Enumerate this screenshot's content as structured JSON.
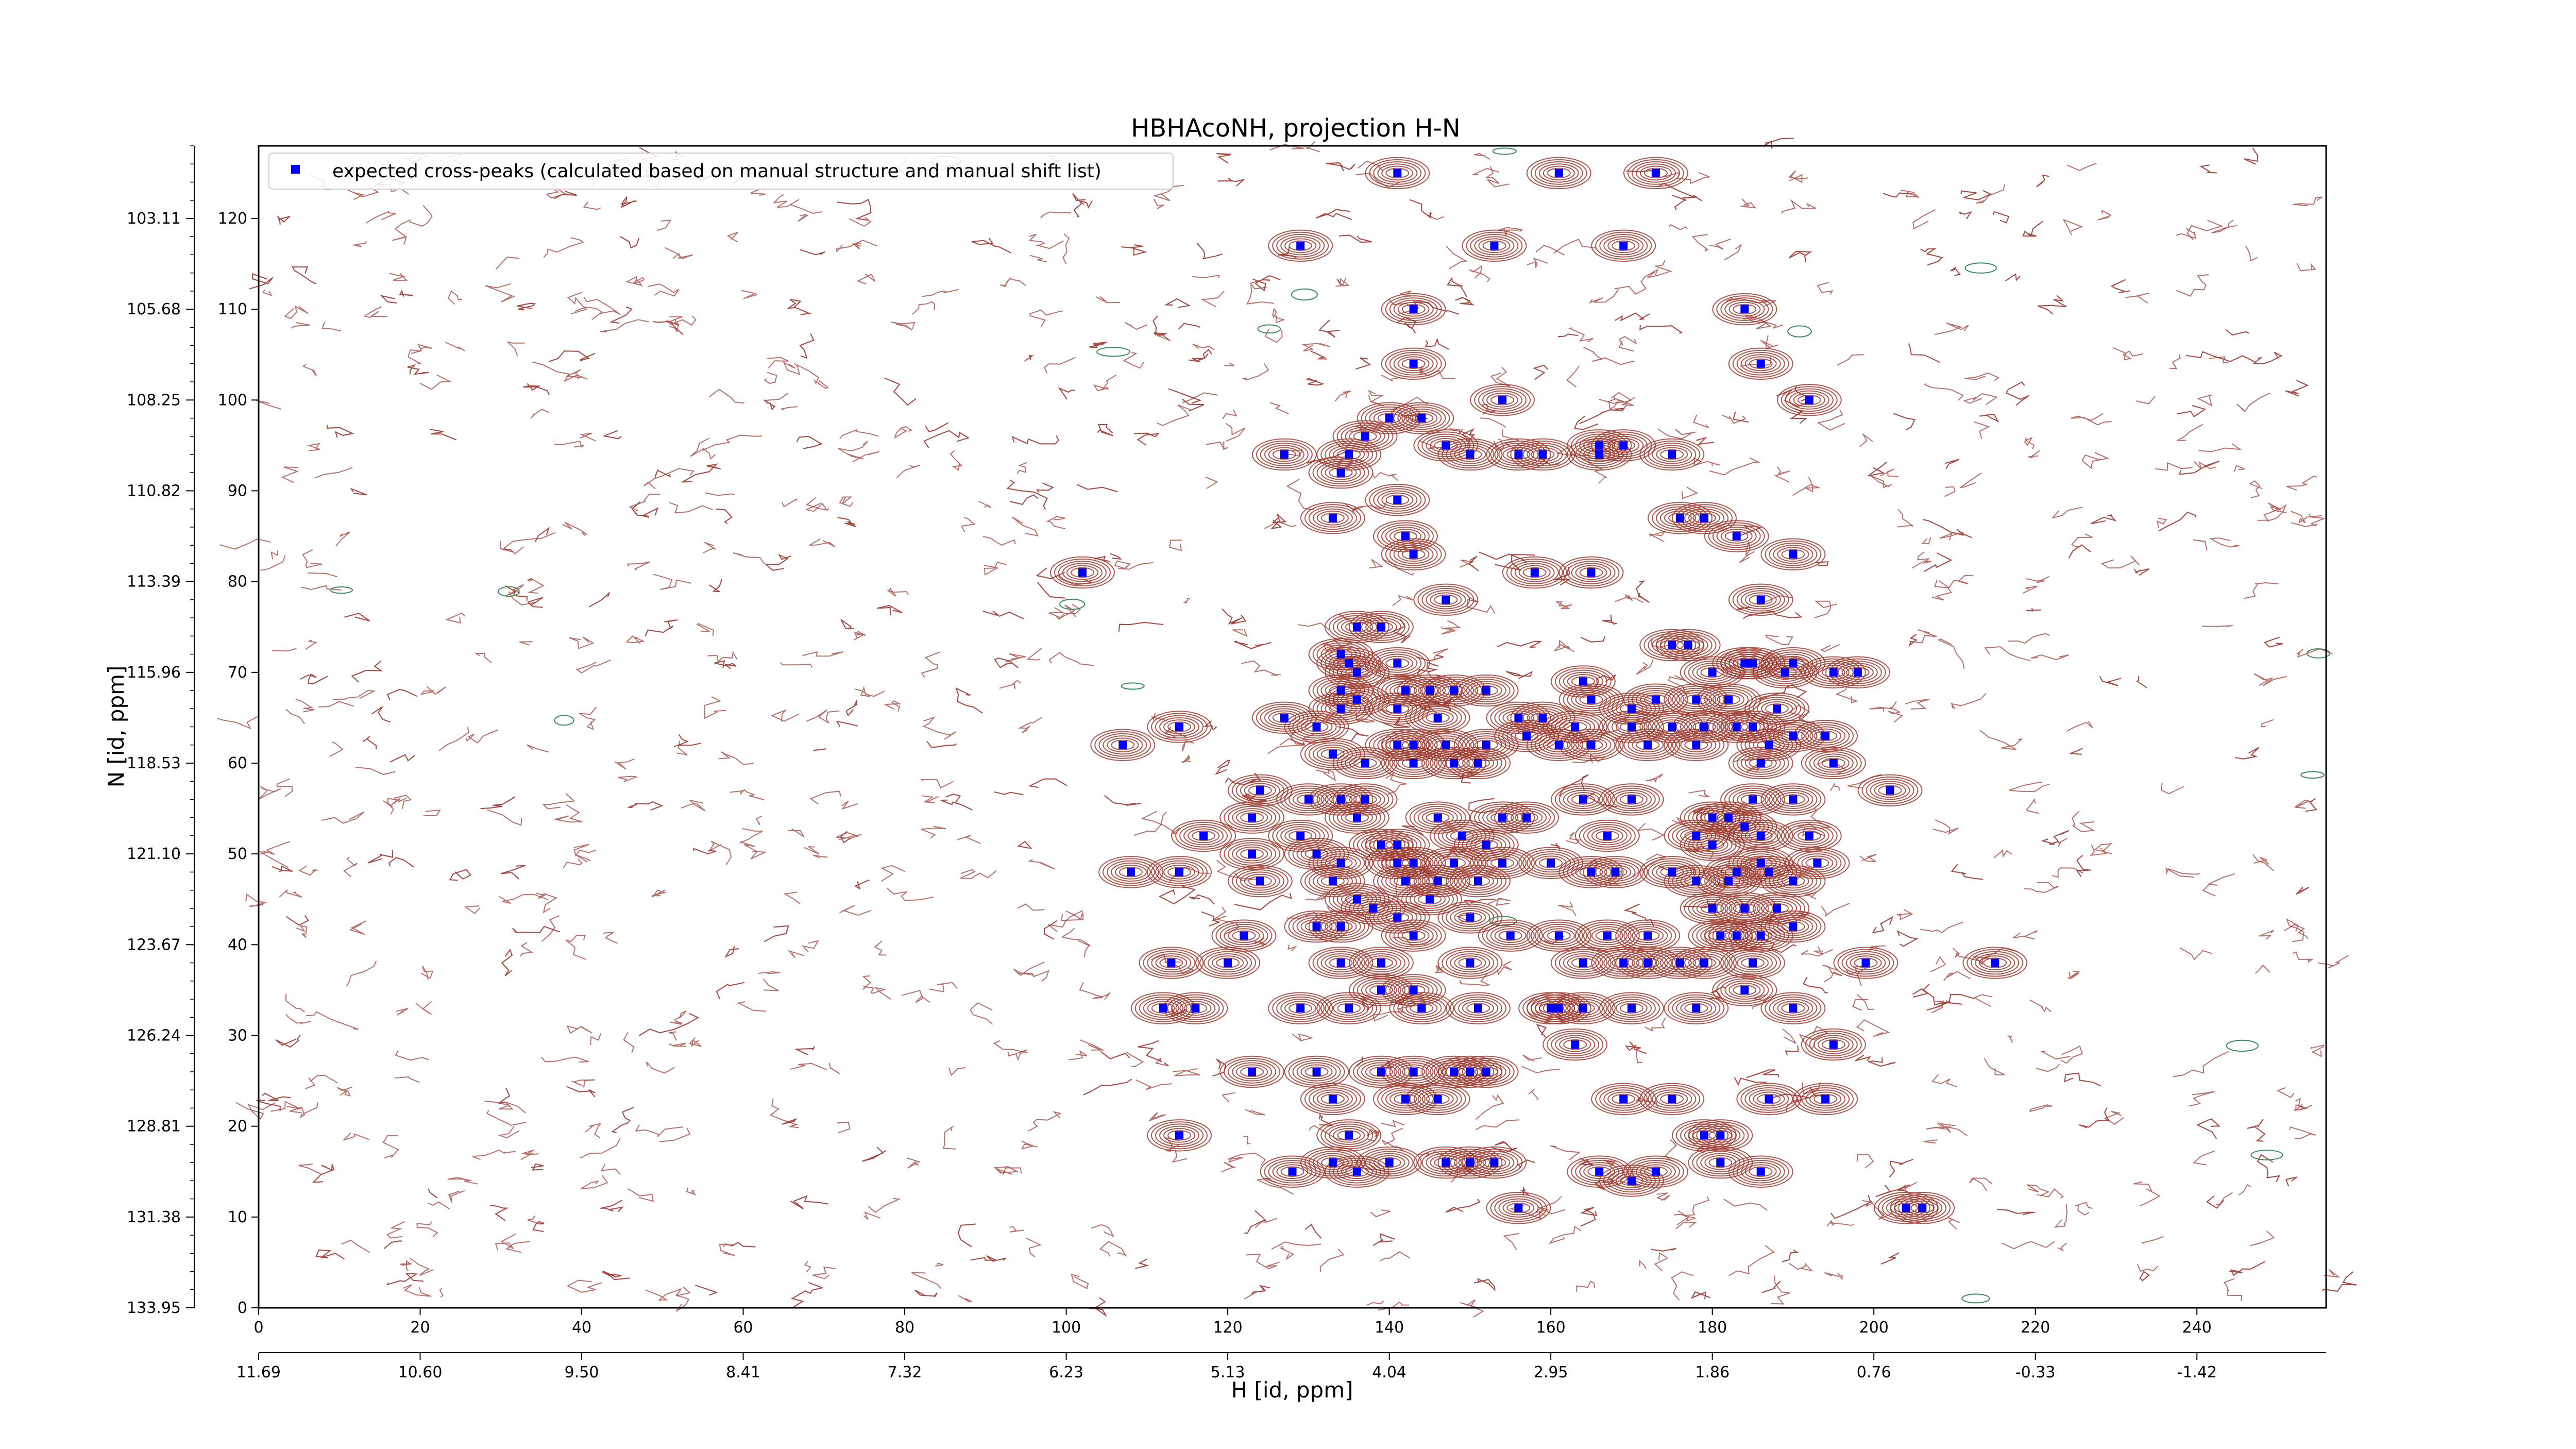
{
  "chart_data": {
    "type": "scatter",
    "title": "HBHAcoNH, projection H-N",
    "xlabel": "H [id, ppm]",
    "ylabel": "N [id, ppm]",
    "xlim": [
      0,
      256
    ],
    "ylim": [
      0,
      128
    ],
    "x_index_ticks": [
      "0",
      "20",
      "40",
      "60",
      "80",
      "100",
      "120",
      "140",
      "160",
      "180",
      "200",
      "220",
      "240"
    ],
    "x_ppm_ticks": [
      "11.69",
      "10.60",
      "9.50",
      "8.41",
      "7.32",
      "6.23",
      "5.13",
      "4.04",
      "2.95",
      "1.86",
      "0.76",
      "-0.33",
      "-1.42"
    ],
    "y_index_ticks": [
      "0",
      "10",
      "20",
      "30",
      "40",
      "50",
      "60",
      "70",
      "80",
      "90",
      "100",
      "110",
      "120"
    ],
    "y_ppm_ticks": [
      "133.95",
      "131.38",
      "128.81",
      "126.24",
      "123.67",
      "121.10",
      "118.53",
      "115.96",
      "113.39",
      "110.82",
      "108.25",
      "105.68",
      "103.11"
    ],
    "grid": false,
    "legend_position": "top-left",
    "series": [
      {
        "name": "expected cross-peaks (calculated based on manual structure and manual shift list)",
        "color": "#0000ff",
        "marker": "square",
        "points": [
          [
            141,
            125
          ],
          [
            161,
            125
          ],
          [
            173,
            125
          ],
          [
            129,
            117
          ],
          [
            153,
            117
          ],
          [
            169,
            117
          ],
          [
            143,
            110
          ],
          [
            184,
            110
          ],
          [
            143,
            104
          ],
          [
            186,
            104
          ],
          [
            154,
            100
          ],
          [
            192,
            100
          ],
          [
            140,
            98
          ],
          [
            144,
            98
          ],
          [
            137,
            96
          ],
          [
            147,
            95
          ],
          [
            166,
            95
          ],
          [
            169,
            95
          ],
          [
            127,
            94
          ],
          [
            135,
            94
          ],
          [
            150,
            94
          ],
          [
            156,
            94
          ],
          [
            159,
            94
          ],
          [
            166,
            94
          ],
          [
            175,
            94
          ],
          [
            134,
            92
          ],
          [
            141,
            89
          ],
          [
            133,
            87
          ],
          [
            176,
            87
          ],
          [
            179,
            87
          ],
          [
            142,
            85
          ],
          [
            183,
            85
          ],
          [
            143,
            83
          ],
          [
            190,
            83
          ],
          [
            102,
            81
          ],
          [
            158,
            81
          ],
          [
            165,
            81
          ],
          [
            147,
            78
          ],
          [
            186,
            78
          ],
          [
            136,
            75
          ],
          [
            139,
            75
          ],
          [
            175,
            73
          ],
          [
            177,
            73
          ],
          [
            134,
            72
          ],
          [
            135,
            71
          ],
          [
            141,
            71
          ],
          [
            136,
            70
          ],
          [
            189,
            70
          ],
          [
            195,
            70
          ],
          [
            184,
            71
          ],
          [
            180,
            70
          ],
          [
            190,
            71
          ],
          [
            185,
            71
          ],
          [
            198,
            70
          ],
          [
            134,
            68
          ],
          [
            136,
            67
          ],
          [
            142,
            68
          ],
          [
            145,
            68
          ],
          [
            148,
            68
          ],
          [
            152,
            68
          ],
          [
            165,
            67
          ],
          [
            170,
            66
          ],
          [
            173,
            67
          ],
          [
            178,
            67
          ],
          [
            182,
            67
          ],
          [
            188,
            66
          ],
          [
            164,
            69
          ],
          [
            134,
            66
          ],
          [
            141,
            66
          ],
          [
            127,
            65
          ],
          [
            131,
            64
          ],
          [
            146,
            65
          ],
          [
            156,
            65
          ],
          [
            159,
            65
          ],
          [
            163,
            64
          ],
          [
            170,
            64
          ],
          [
            175,
            64
          ],
          [
            179,
            64
          ],
          [
            183,
            64
          ],
          [
            185,
            64
          ],
          [
            190,
            63
          ],
          [
            194,
            63
          ],
          [
            141,
            62
          ],
          [
            143,
            62
          ],
          [
            147,
            62
          ],
          [
            152,
            62
          ],
          [
            157,
            63
          ],
          [
            161,
            62
          ],
          [
            165,
            62
          ],
          [
            172,
            62
          ],
          [
            178,
            62
          ],
          [
            187,
            62
          ],
          [
            107,
            62
          ],
          [
            114,
            64
          ],
          [
            133,
            61
          ],
          [
            137,
            60
          ],
          [
            143,
            60
          ],
          [
            148,
            60
          ],
          [
            151,
            60
          ],
          [
            186,
            60
          ],
          [
            195,
            60
          ],
          [
            124,
            57
          ],
          [
            130,
            56
          ],
          [
            134,
            56
          ],
          [
            137,
            56
          ],
          [
            164,
            56
          ],
          [
            170,
            56
          ],
          [
            185,
            56
          ],
          [
            190,
            56
          ],
          [
            202,
            57
          ],
          [
            136,
            54
          ],
          [
            123,
            54
          ],
          [
            146,
            54
          ],
          [
            154,
            54
          ],
          [
            157,
            54
          ],
          [
            180,
            54
          ],
          [
            182,
            54
          ],
          [
            186,
            52
          ],
          [
            192,
            52
          ],
          [
            117,
            52
          ],
          [
            129,
            52
          ],
          [
            139,
            51
          ],
          [
            141,
            51
          ],
          [
            149,
            52
          ],
          [
            152,
            51
          ],
          [
            167,
            52
          ],
          [
            178,
            52
          ],
          [
            184,
            53
          ],
          [
            180,
            51
          ],
          [
            186,
            49
          ],
          [
            193,
            49
          ],
          [
            123,
            50
          ],
          [
            131,
            50
          ],
          [
            134,
            49
          ],
          [
            141,
            49
          ],
          [
            143,
            49
          ],
          [
            148,
            49
          ],
          [
            154,
            49
          ],
          [
            160,
            49
          ],
          [
            165,
            48
          ],
          [
            168,
            48
          ],
          [
            175,
            48
          ],
          [
            183,
            48
          ],
          [
            187,
            48
          ],
          [
            108,
            48
          ],
          [
            114,
            48
          ],
          [
            124,
            47
          ],
          [
            133,
            47
          ],
          [
            142,
            47
          ],
          [
            146,
            47
          ],
          [
            151,
            47
          ],
          [
            178,
            47
          ],
          [
            182,
            47
          ],
          [
            190,
            47
          ],
          [
            136,
            45
          ],
          [
            138,
            44
          ],
          [
            145,
            45
          ],
          [
            141,
            43
          ],
          [
            150,
            43
          ],
          [
            180,
            44
          ],
          [
            184,
            44
          ],
          [
            188,
            44
          ],
          [
            131,
            42
          ],
          [
            134,
            42
          ],
          [
            143,
            41
          ],
          [
            155,
            41
          ],
          [
            161,
            41
          ],
          [
            167,
            41
          ],
          [
            172,
            41
          ],
          [
            181,
            41
          ],
          [
            183,
            41
          ],
          [
            186,
            41
          ],
          [
            190,
            42
          ],
          [
            122,
            41
          ],
          [
            134,
            38
          ],
          [
            139,
            38
          ],
          [
            150,
            38
          ],
          [
            164,
            38
          ],
          [
            169,
            38
          ],
          [
            172,
            38
          ],
          [
            176,
            38
          ],
          [
            179,
            38
          ],
          [
            185,
            38
          ],
          [
            113,
            38
          ],
          [
            120,
            38
          ],
          [
            199,
            38
          ],
          [
            215,
            38
          ],
          [
            139,
            35
          ],
          [
            143,
            35
          ],
          [
            184,
            35
          ],
          [
            112,
            33
          ],
          [
            116,
            33
          ],
          [
            129,
            33
          ],
          [
            135,
            33
          ],
          [
            144,
            33
          ],
          [
            151,
            33
          ],
          [
            160,
            33
          ],
          [
            161,
            33
          ],
          [
            164,
            33
          ],
          [
            170,
            33
          ],
          [
            178,
            33
          ],
          [
            190,
            33
          ],
          [
            163,
            29
          ],
          [
            195,
            29
          ],
          [
            123,
            26
          ],
          [
            131,
            26
          ],
          [
            139,
            26
          ],
          [
            143,
            26
          ],
          [
            148,
            26
          ],
          [
            150,
            26
          ],
          [
            152,
            26
          ],
          [
            133,
            23
          ],
          [
            142,
            23
          ],
          [
            146,
            23
          ],
          [
            169,
            23
          ],
          [
            175,
            23
          ],
          [
            187,
            23
          ],
          [
            194,
            23
          ],
          [
            114,
            19
          ],
          [
            135,
            19
          ],
          [
            179,
            19
          ],
          [
            181,
            19
          ],
          [
            133,
            16
          ],
          [
            140,
            16
          ],
          [
            147,
            16
          ],
          [
            150,
            16
          ],
          [
            153,
            16
          ],
          [
            181,
            16
          ],
          [
            128,
            15
          ],
          [
            136,
            15
          ],
          [
            166,
            15
          ],
          [
            173,
            15
          ],
          [
            186,
            15
          ],
          [
            170,
            14
          ],
          [
            156,
            11
          ],
          [
            204,
            11
          ],
          [
            206,
            11
          ]
        ]
      }
    ]
  }
}
